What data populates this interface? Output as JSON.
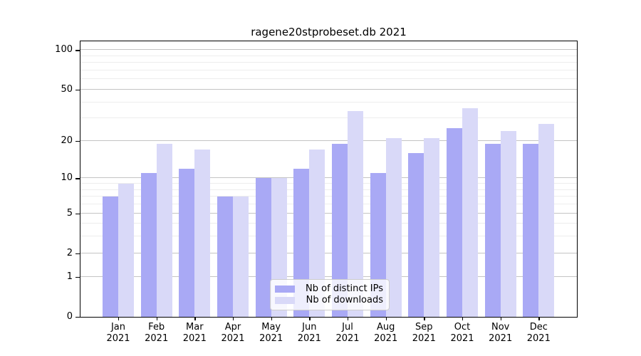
{
  "chart_data": {
    "type": "bar",
    "title": "ragene20stprobeset.db 2021",
    "year": "2021",
    "months": [
      "Jan",
      "Feb",
      "Mar",
      "Apr",
      "May",
      "Jun",
      "Jul",
      "Aug",
      "Sep",
      "Oct",
      "Nov",
      "Dec"
    ],
    "categories": [
      "Jan 2021",
      "Feb 2021",
      "Mar 2021",
      "Apr 2021",
      "May 2021",
      "Jun 2021",
      "Jul 2021",
      "Aug 2021",
      "Sep 2021",
      "Oct 2021",
      "Nov 2021",
      "Dec 2021"
    ],
    "series": [
      {
        "name": "Nb of distinct IPs",
        "color": "#a9a9f5",
        "values": [
          7,
          11,
          12,
          7,
          10,
          12,
          19,
          11,
          16,
          25,
          19,
          19
        ]
      },
      {
        "name": "Nb of downloads",
        "color": "#d9d9f8",
        "values": [
          9,
          19,
          17,
          7,
          10,
          17,
          34,
          21,
          21,
          36,
          24,
          27
        ]
      }
    ],
    "yscale": "log1p",
    "ylim": [
      0,
      116
    ],
    "yticks": [
      0,
      1,
      2,
      5,
      10,
      20,
      50,
      100
    ],
    "minor_yticks": [
      3,
      4,
      6,
      7,
      8,
      9,
      30,
      40,
      60,
      70,
      80,
      90
    ],
    "grid": true,
    "legend_position": "bottom-center",
    "colors": {
      "major_grid": "#c4c4c4",
      "minor_grid": "#ededed",
      "axis": "#000000"
    }
  }
}
